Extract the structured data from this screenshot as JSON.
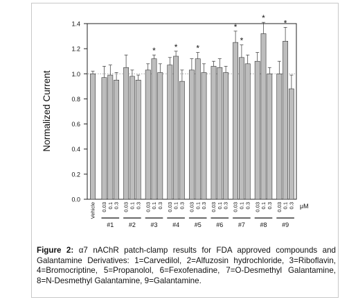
{
  "chart_data": {
    "type": "bar",
    "ylabel": "Normalized Current",
    "ylim": [
      0.0,
      1.4
    ],
    "yticks": [
      "0.0",
      "0.2",
      "0.4",
      "0.6",
      "0.8",
      "1.0",
      "1.2",
      "1.4"
    ],
    "reference_line": 1.0,
    "unit_label": "μM",
    "vehicle": {
      "label": "Vehicle",
      "value": 1.0,
      "error": 0.02
    },
    "dose_labels": [
      "0.03",
      "0.1",
      "0.3"
    ],
    "groups": [
      {
        "name": "#1",
        "values": [
          0.97,
          0.99,
          0.95
        ],
        "errors": [
          0.09,
          0.08,
          0.06
        ],
        "significant": [
          false,
          false,
          false
        ]
      },
      {
        "name": "#2",
        "values": [
          1.05,
          0.98,
          0.95
        ],
        "errors": [
          0.1,
          0.05,
          0.04
        ],
        "significant": [
          false,
          false,
          false
        ]
      },
      {
        "name": "#3",
        "values": [
          1.03,
          1.12,
          1.01
        ],
        "errors": [
          0.05,
          0.03,
          0.07
        ],
        "significant": [
          false,
          true,
          false
        ]
      },
      {
        "name": "#4",
        "values": [
          1.07,
          1.14,
          0.94
        ],
        "errors": [
          0.06,
          0.04,
          0.09
        ],
        "significant": [
          false,
          true,
          false
        ]
      },
      {
        "name": "#5",
        "values": [
          1.03,
          1.12,
          1.01
        ],
        "errors": [
          0.09,
          0.05,
          0.07
        ],
        "significant": [
          false,
          true,
          false
        ]
      },
      {
        "name": "#6",
        "values": [
          1.06,
          1.05,
          1.01
        ],
        "errors": [
          0.04,
          0.07,
          0.05
        ],
        "significant": [
          false,
          false,
          false
        ]
      },
      {
        "name": "#7",
        "values": [
          1.25,
          1.13,
          1.08
        ],
        "errors": [
          0.09,
          0.1,
          0.07
        ],
        "significant": [
          true,
          true,
          false
        ]
      },
      {
        "name": "#8",
        "values": [
          1.1,
          1.32,
          1.0
        ],
        "errors": [
          0.07,
          0.09,
          0.05
        ],
        "significant": [
          false,
          true,
          false
        ]
      },
      {
        "name": "#9",
        "values": [
          1.0,
          1.26,
          0.88
        ],
        "errors": [
          0.1,
          0.11,
          0.11
        ],
        "significant": [
          false,
          true,
          false
        ]
      }
    ],
    "colors": {
      "bar_fill": "#bdbdbd",
      "bar_stroke": "#333333",
      "axis": "#222222",
      "reference": "#888888"
    }
  },
  "caption": {
    "label": "Figure 2:",
    "text": "α7 nAChR patch-clamp results for FDA approved compounds and Galantamine Derivatives: 1=Carvedilol, 2=Alfuzosin hydrochloride, 3=Riboflavin, 4=Bromocriptine, 5=Propanolol, 6=Fexofenadine, 7=O-Desmethyl Galantamine, 8=N-Desmethyl Galantamine, 9=Galantamine."
  }
}
